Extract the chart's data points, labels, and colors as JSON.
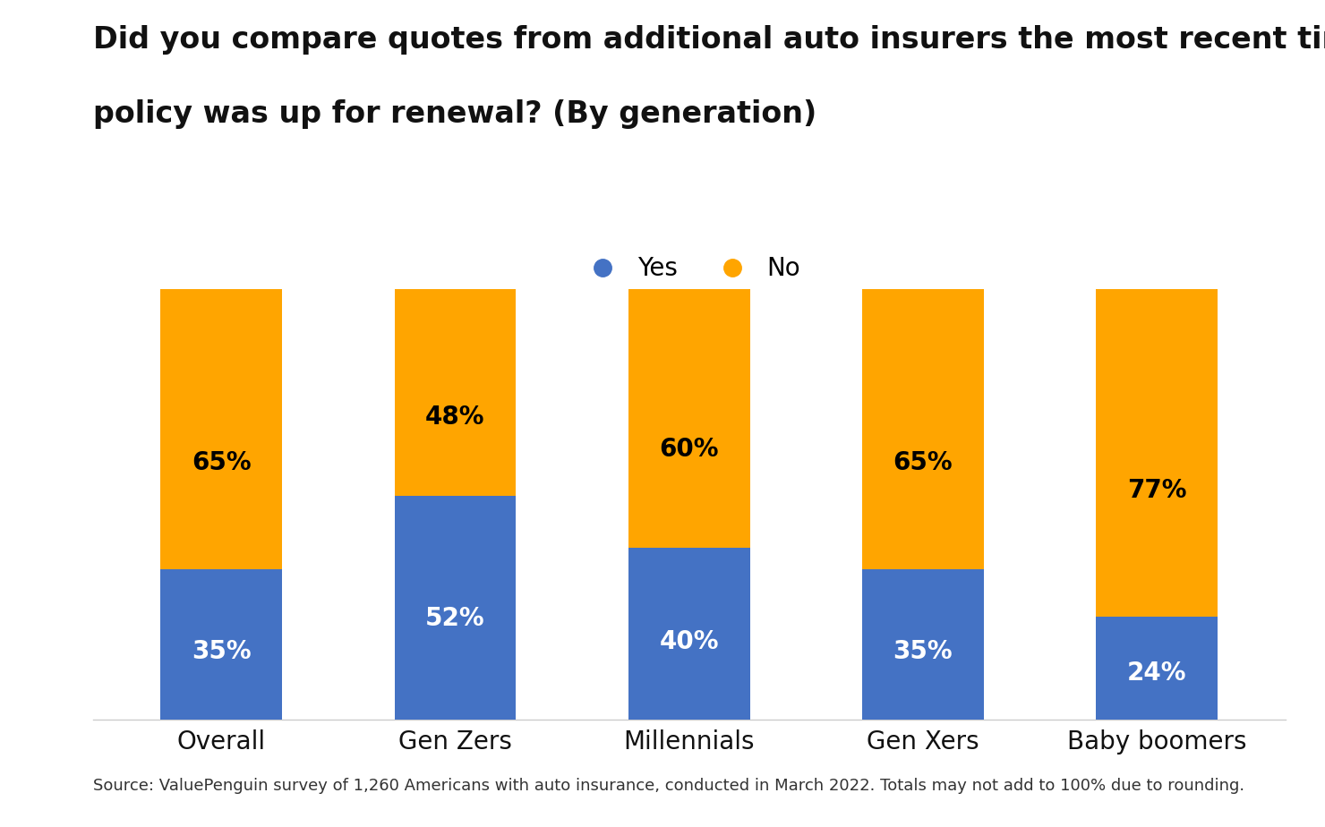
{
  "title_line1": "Did you compare quotes from additional auto insurers the most recent time your",
  "title_line2": "policy was up for renewal? (By generation)",
  "categories": [
    "Overall",
    "Gen Zers",
    "Millennials",
    "Gen Xers",
    "Baby boomers"
  ],
  "yes_values": [
    35,
    52,
    40,
    35,
    24
  ],
  "no_values": [
    65,
    48,
    60,
    65,
    77
  ],
  "yes_color": "#4472C4",
  "no_color": "#FFA500",
  "yes_label": "Yes",
  "no_label": "No",
  "background_color": "#ffffff",
  "title_fontsize": 24,
  "label_fontsize": 20,
  "tick_fontsize": 20,
  "legend_fontsize": 20,
  "source_text": "Source: ValuePenguin survey of 1,260 Americans with auto insurance, conducted in March 2022. Totals may not add to 100% due to rounding.",
  "source_fontsize": 13,
  "bar_width": 0.52,
  "ylim": [
    0,
    100
  ]
}
